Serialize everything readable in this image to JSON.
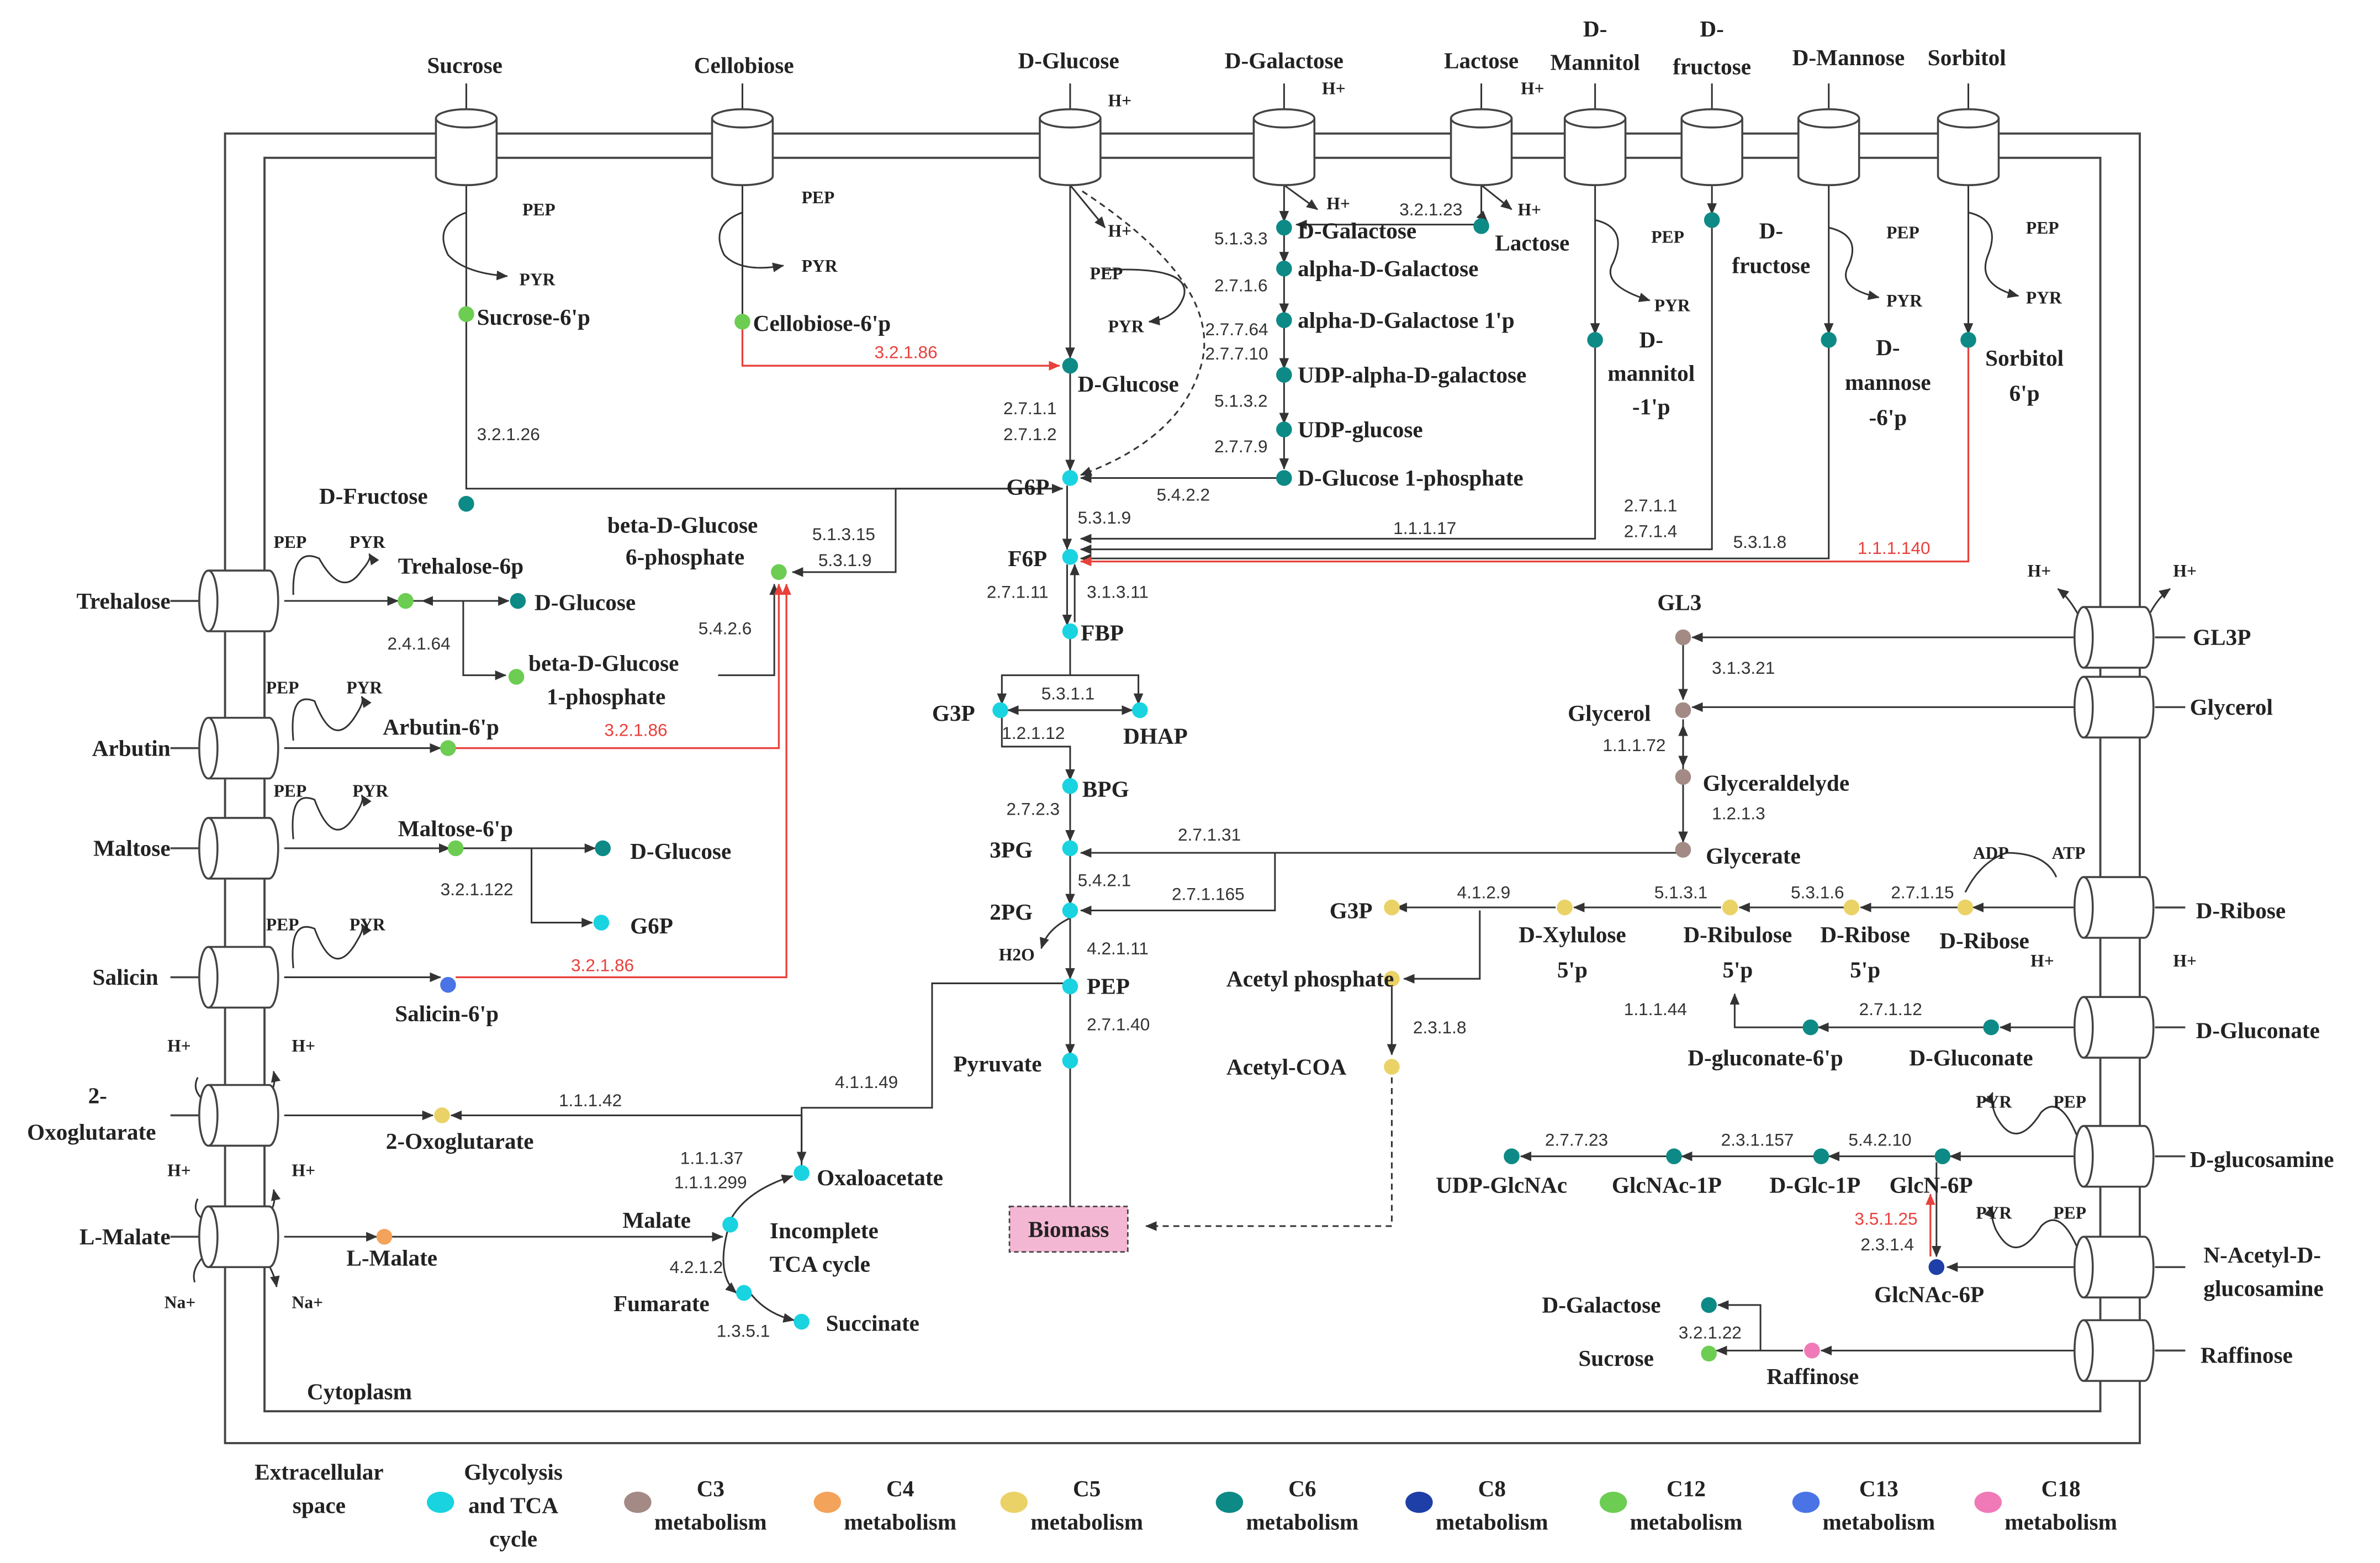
{
  "colors": {
    "glycolysis": "#19d3e0",
    "c3": "#a38a84",
    "c4": "#f3a35a",
    "c5": "#ebd267",
    "c6": "#0d8a86",
    "c8": "#1e3fa8",
    "c12": "#6ccd52",
    "c13": "#4a74e6",
    "c18": "#f07ab7",
    "red": "#e8413c",
    "line": "#333333",
    "biomass_fill": "#f4b7d3"
  },
  "top_transporters": {
    "sucrose": "Sucrose",
    "cellobiose": "Cellobiose",
    "glucose": "D-Glucose",
    "galactose": "D-Galactose",
    "lactose": "Lactose",
    "mannitol_1": "D-",
    "mannitol_2": "Mannitol",
    "fructose_1": "D-",
    "fructose_2": "fructose",
    "mannose": "D-Mannose",
    "sorbitol": "Sorbitol"
  },
  "left_transporters": {
    "trehalose": "Trehalose",
    "arbutin": "Arbutin",
    "maltose": "Maltose",
    "salicin": "Salicin",
    "oxoglutarate_1": "2-",
    "oxoglutarate_2": "Oxoglutarate",
    "lmalate": "L-Malate"
  },
  "right_transporters": {
    "gl3p": "GL3P",
    "glycerol": "Glycerol",
    "ribose": "D-Ribose",
    "gluconate": "D-Gluconate",
    "glucosamine": "D-glucosamine",
    "nacetyl_1": "N-Acetyl-D-",
    "nacetyl_2": "glucosamine",
    "raffinose": "Raffinose"
  },
  "small_labels": {
    "pep": "PEP",
    "pyr": "PYR",
    "hplus": "H+",
    "naplus": "Na+",
    "adp": "ADP",
    "atp": "ATP",
    "h2o": "H2O"
  },
  "metabolites": {
    "sucrose_6p": "Sucrose-6'p",
    "cellobiose_6p": "Cellobiose-6'p",
    "d_fructose_left": "D-Fructose",
    "trehalose_6p": "Trehalose-6p",
    "d_glucose_trehalose": "D-Glucose",
    "beta_glucose_1p_1": "beta-D-Glucose",
    "beta_glucose_1p_2": "1-phosphate",
    "beta_glucose_6p_1": "beta-D-Glucose",
    "beta_glucose_6p_2": "6-phosphate",
    "arbutin_6p": "Arbutin-6'p",
    "maltose_6p": "Maltose-6'p",
    "d_glucose_maltose": "D-Glucose",
    "g6p_maltose": "G6P",
    "salicin_6p": "Salicin-6'p",
    "oxoglutarate": "2-Oxoglutarate",
    "l_malate": "L-Malate",
    "d_glucose_center": "D-Glucose",
    "g6p": "G6P",
    "f6p": "F6P",
    "fbp": "FBP",
    "g3p": "G3P",
    "dhap": "DHAP",
    "bpg": "BPG",
    "pg3": "3PG",
    "pg2": "2PG",
    "pep": "PEP",
    "pyruvate": "Pyruvate",
    "biomass": "Biomass",
    "oxaloacetate": "Oxaloacetate",
    "malate": "Malate",
    "fumarate": "Fumarate",
    "succinate": "Succinate",
    "tca_1": "Incomplete",
    "tca_2": "TCA cycle",
    "d_galactose": "D-Galactose",
    "alpha_galactose": "alpha-D-Galactose",
    "alpha_galactose_1p": "alpha-D-Galactose 1'p",
    "udp_alpha_galactose": "UDP-alpha-D-galactose",
    "udp_glucose": "UDP-glucose",
    "glucose_1_phosphate": "D-Glucose 1-phosphate",
    "lactose_inner": "Lactose",
    "d_fructose_inner_1": "D-",
    "d_fructose_inner_2": "fructose",
    "mannitol_1p_1": "D-",
    "mannitol_1p_2": "mannitol",
    "mannitol_1p_3": "-1'p",
    "mannose_6p_1": "D-",
    "mannose_6p_2": "mannose",
    "mannose_6p_3": "-6'p",
    "sorbitol_6p_1": "Sorbitol",
    "sorbitol_6p_2": "6'p",
    "gl3": "GL3",
    "glycerol_inner": "Glycerol",
    "glyceraldehyde": "Glyceraldelyde",
    "glycerate": "Glycerate",
    "g3p_right": "G3P",
    "xylulose_5p_1": "D-Xylulose",
    "xylulose_5p_2": "5'p",
    "ribulose_5p_1": "D-Ribulose",
    "ribulose_5p_2": "5'p",
    "ribose_5p_1": "D-Ribose",
    "ribose_5p_2": "5'p",
    "d_ribose_inner": "D-Ribose",
    "acetyl_phosphate": "Acetyl phosphate",
    "acetyl_coa": "Acetyl-COA",
    "gluconate_6p": "D-gluconate-6'p",
    "d_gluconate_inner": "D-Gluconate",
    "udp_glcnac": "UDP-GlcNAc",
    "glcnac_1p": "GlcNAc-1P",
    "glc_1p": "D-Glc-1P",
    "glcn_6p": "GlcN-6P",
    "glcnac_6p": "GlcNAc-6P",
    "d_galactose_raff": "D-Galactose",
    "sucrose_raff": "Sucrose",
    "raffinose_inner": "Raffinose",
    "cytoplasm": "Cytoplasm"
  },
  "enzymes": {
    "e_3_2_1_86_cellobiose": "3.2.1.86",
    "e_3_2_1_26": "3.2.1.26",
    "e_2_4_1_64": "2.4.1.64",
    "e_5_4_2_6": "5.4.2.6",
    "e_5_1_3_15": "5.1.3.15",
    "e_5_1_3_9_beta": "5.3.1.9",
    "e_3_2_1_86_arbutin": "3.2.1.86",
    "e_3_2_1_122": "3.2.1.122",
    "e_3_2_1_86_salicin": "3.2.1.86",
    "e_1_1_1_42": "1.1.1.42",
    "e_1_1_1_37": "1.1.1.37",
    "e_1_1_1_299": "1.1.1.299",
    "e_4_2_1_2": "4.2.1.2",
    "e_1_3_5_1": "1.3.5.1",
    "e_4_1_1_49": "4.1.1.49",
    "e_2_7_1_1": "2.7.1.1",
    "e_2_7_1_2": "2.7.1.2",
    "e_5_4_2_2": "5.4.2.2",
    "e_5_3_1_9": "5.3.1.9",
    "e_2_7_1_11": "2.7.1.11",
    "e_3_1_3_11": "3.1.3.11",
    "e_5_3_1_1": "5.3.1.1",
    "e_1_2_1_12": "1.2.1.12",
    "e_2_7_2_3": "2.7.2.3",
    "e_5_4_2_1": "5.4.2.1",
    "e_4_2_1_11": "4.2.1.11",
    "e_2_7_1_40": "2.7.1.40",
    "e_2_7_1_31": "2.7.1.31",
    "e_2_7_1_165": "2.7.1.165",
    "e_5_1_3_3": "5.1.3.3",
    "e_2_7_1_6": "2.7.1.6",
    "e_2_7_7_64": "2.7.7.64",
    "e_2_7_7_10": "2.7.7.10",
    "e_5_1_3_2": "5.1.3.2",
    "e_2_7_7_9": "2.7.7.9",
    "e_3_2_1_23": "3.2.1.23",
    "e_1_1_1_17": "1.1.1.17",
    "e_2_7_1_1_b": "2.7.1.1",
    "e_2_7_1_4": "2.7.1.4",
    "e_5_3_1_8": "5.3.1.8",
    "e_1_1_1_140": "1.1.1.140",
    "e_3_1_3_21": "3.1.3.21",
    "e_1_1_1_72": "1.1.1.72",
    "e_1_2_1_3": "1.2.1.3",
    "e_4_1_2_9": "4.1.2.9",
    "e_5_1_3_1": "5.1.3.1",
    "e_5_3_1_6": "5.3.1.6",
    "e_2_7_1_15": "2.7.1.15",
    "e_2_3_1_8": "2.3.1.8",
    "e_1_1_1_44": "1.1.1.44",
    "e_2_7_1_12": "2.7.1.12",
    "e_2_7_7_23": "2.7.7.23",
    "e_2_3_1_157": "2.3.1.157",
    "e_5_4_2_10": "5.4.2.10",
    "e_3_5_1_25": "3.5.1.25",
    "e_2_3_1_4": "2.3.1.4",
    "e_3_2_1_22": "3.2.1.22"
  },
  "legend": {
    "extracellular_1": "Extracellular",
    "extracellular_2": "space",
    "items": [
      {
        "line1": "Glycolysis",
        "line2": "and TCA",
        "line3": "cycle",
        "color": "#19d3e0"
      },
      {
        "line1": "C3",
        "line2": "metabolism",
        "line3": "",
        "color": "#a38a84"
      },
      {
        "line1": "C4",
        "line2": "metabolism",
        "line3": "",
        "color": "#f3a35a"
      },
      {
        "line1": "C5",
        "line2": "metabolism",
        "line3": "",
        "color": "#ebd267"
      },
      {
        "line1": "C6",
        "line2": "metabolism",
        "line3": "",
        "color": "#0d8a86"
      },
      {
        "line1": "C8",
        "line2": "metabolism",
        "line3": "",
        "color": "#1e3fa8"
      },
      {
        "line1": "C12",
        "line2": "metabolism",
        "line3": "",
        "color": "#6ccd52"
      },
      {
        "line1": "C13",
        "line2": "metabolism",
        "line3": "",
        "color": "#4a74e6"
      },
      {
        "line1": "C18",
        "line2": "metabolism",
        "line3": "",
        "color": "#f07ab7"
      }
    ]
  }
}
